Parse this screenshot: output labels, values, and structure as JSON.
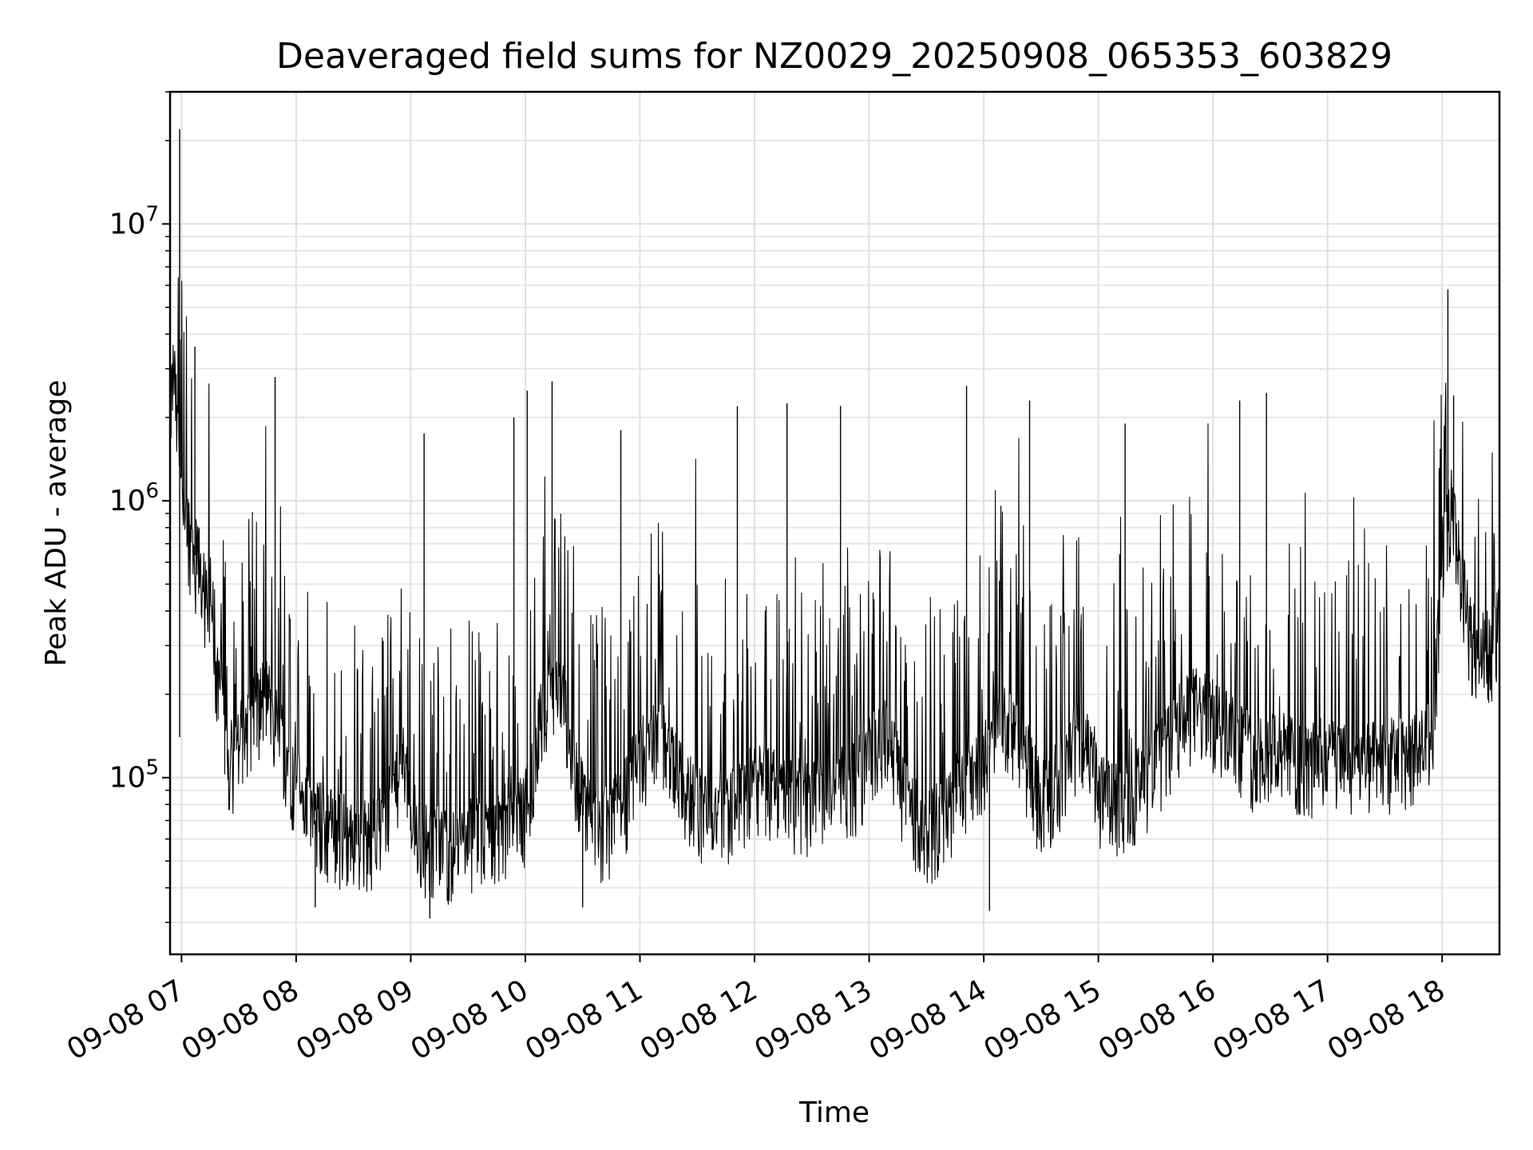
{
  "chart_data": {
    "type": "line",
    "title": "Deaveraged field sums for NZ0029_20250908_065353_603829",
    "xlabel": "Time",
    "ylabel": "Peak ADU - average",
    "y_scale": "log",
    "ylim": [
      23000,
      30000000
    ],
    "xlim": [
      "2025-09-08 06:54",
      "2025-09-08 18:30"
    ],
    "grid": true,
    "x_ticks": [
      {
        "label": "09-08 07",
        "x": "2025-09-08 07:00"
      },
      {
        "label": "09-08 08",
        "x": "2025-09-08 08:00"
      },
      {
        "label": "09-08 09",
        "x": "2025-09-08 09:00"
      },
      {
        "label": "09-08 10",
        "x": "2025-09-08 10:00"
      },
      {
        "label": "09-08 11",
        "x": "2025-09-08 11:00"
      },
      {
        "label": "09-08 12",
        "x": "2025-09-08 12:00"
      },
      {
        "label": "09-08 13",
        "x": "2025-09-08 13:00"
      },
      {
        "label": "09-08 14",
        "x": "2025-09-08 14:00"
      },
      {
        "label": "09-08 15",
        "x": "2025-09-08 15:00"
      },
      {
        "label": "09-08 16",
        "x": "2025-09-08 16:00"
      },
      {
        "label": "09-08 17",
        "x": "2025-09-08 17:00"
      },
      {
        "label": "09-08 18",
        "x": "2025-09-08 18:00"
      }
    ],
    "y_ticks": [
      {
        "base": "10",
        "exp": "5",
        "value": 100000
      },
      {
        "base": "10",
        "exp": "6",
        "value": 1000000
      },
      {
        "base": "10",
        "exp": "7",
        "value": 10000000
      }
    ],
    "series": [
      {
        "color": "#000000",
        "x": [
          "2025-09-08 06:54",
          "2025-09-08 06:56",
          "2025-09-08 06:58",
          "2025-09-08 07:00",
          "2025-09-08 07:02",
          "2025-09-08 07:05",
          "2025-09-08 07:10",
          "2025-09-08 07:15",
          "2025-09-08 07:20",
          "2025-09-08 07:25",
          "2025-09-08 07:30",
          "2025-09-08 07:35",
          "2025-09-08 07:40",
          "2025-09-08 07:45",
          "2025-09-08 07:50",
          "2025-09-08 07:55",
          "2025-09-08 08:00",
          "2025-09-08 08:10",
          "2025-09-08 08:20",
          "2025-09-08 08:30",
          "2025-09-08 08:40",
          "2025-09-08 08:50",
          "2025-09-08 08:55",
          "2025-09-08 09:00",
          "2025-09-08 09:10",
          "2025-09-08 09:20",
          "2025-09-08 09:30",
          "2025-09-08 09:40",
          "2025-09-08 09:50",
          "2025-09-08 10:00",
          "2025-09-08 10:10",
          "2025-09-08 10:20",
          "2025-09-08 10:30",
          "2025-09-08 10:40",
          "2025-09-08 10:50",
          "2025-09-08 11:00",
          "2025-09-08 11:10",
          "2025-09-08 11:20",
          "2025-09-08 11:30",
          "2025-09-08 11:40",
          "2025-09-08 11:50",
          "2025-09-08 12:00",
          "2025-09-08 12:10",
          "2025-09-08 12:20",
          "2025-09-08 12:30",
          "2025-09-08 12:40",
          "2025-09-08 12:50",
          "2025-09-08 13:00",
          "2025-09-08 13:10",
          "2025-09-08 13:20",
          "2025-09-08 13:30",
          "2025-09-08 13:40",
          "2025-09-08 13:50",
          "2025-09-08 14:00",
          "2025-09-08 14:10",
          "2025-09-08 14:20",
          "2025-09-08 14:30",
          "2025-09-08 14:40",
          "2025-09-08 14:50",
          "2025-09-08 15:00",
          "2025-09-08 15:10",
          "2025-09-08 15:20",
          "2025-09-08 15:30",
          "2025-09-08 15:40",
          "2025-09-08 15:50",
          "2025-09-08 16:00",
          "2025-09-08 16:10",
          "2025-09-08 16:20",
          "2025-09-08 16:30",
          "2025-09-08 16:40",
          "2025-09-08 16:50",
          "2025-09-08 17:00",
          "2025-09-08 17:10",
          "2025-09-08 17:20",
          "2025-09-08 17:30",
          "2025-09-08 17:40",
          "2025-09-08 17:50",
          "2025-09-08 17:55",
          "2025-09-08 18:00",
          "2025-09-08 18:05",
          "2025-09-08 18:10",
          "2025-09-08 18:15",
          "2025-09-08 18:20",
          "2025-09-08 18:25",
          "2025-09-08 18:30"
        ],
        "y": [
          2000000,
          3000000,
          1600000,
          1200000,
          900000,
          700000,
          550000,
          350000,
          180000,
          110000,
          130000,
          160000,
          180000,
          200000,
          150000,
          120000,
          90000,
          70000,
          65000,
          60000,
          60000,
          80000,
          120000,
          70000,
          55000,
          55000,
          60000,
          60000,
          70000,
          75000,
          200000,
          180000,
          80000,
          65000,
          75000,
          120000,
          140000,
          100000,
          80000,
          75000,
          80000,
          95000,
          90000,
          85000,
          80000,
          100000,
          90000,
          120000,
          140000,
          80000,
          65000,
          70000,
          100000,
          120000,
          160000,
          130000,
          80000,
          100000,
          150000,
          90000,
          80000,
          90000,
          110000,
          140000,
          180000,
          160000,
          150000,
          120000,
          130000,
          120000,
          110000,
          120000,
          110000,
          110000,
          115000,
          120000,
          120000,
          150000,
          600000,
          1000000,
          500000,
          320000,
          300000,
          280000,
          350000
        ]
      }
    ],
    "spikes": [
      {
        "x": "2025-09-08 06:59",
        "y": 22000000
      },
      {
        "x": "2025-09-08 06:59",
        "y": 140000
      },
      {
        "x": "2025-09-08 07:07",
        "y": 3600000
      },
      {
        "x": "2025-09-08 07:49",
        "y": 2800000
      },
      {
        "x": "2025-09-08 09:07",
        "y": 1750000
      },
      {
        "x": "2025-09-08 09:54",
        "y": 2000000
      },
      {
        "x": "2025-09-08 10:01",
        "y": 2500000
      },
      {
        "x": "2025-09-08 10:14",
        "y": 2700000
      },
      {
        "x": "2025-09-08 10:50",
        "y": 1800000
      },
      {
        "x": "2025-09-08 11:51",
        "y": 2200000
      },
      {
        "x": "2025-09-08 12:17",
        "y": 2250000
      },
      {
        "x": "2025-09-08 12:45",
        "y": 2200000
      },
      {
        "x": "2025-09-08 13:51",
        "y": 2600000
      },
      {
        "x": "2025-09-08 14:24",
        "y": 2300000
      },
      {
        "x": "2025-09-08 15:14",
        "y": 1900000
      },
      {
        "x": "2025-09-08 16:14",
        "y": 2300000
      },
      {
        "x": "2025-09-08 16:28",
        "y": 2450000
      },
      {
        "x": "2025-09-08 18:03",
        "y": 5800000
      },
      {
        "x": "2025-09-08 18:06",
        "y": 2400000
      },
      {
        "x": "2025-09-08 14:03",
        "y": 33000
      },
      {
        "x": "2025-09-08 09:10",
        "y": 31000
      },
      {
        "x": "2025-09-08 10:30",
        "y": 34000
      },
      {
        "x": "2025-09-08 08:10",
        "y": 34000
      }
    ]
  }
}
